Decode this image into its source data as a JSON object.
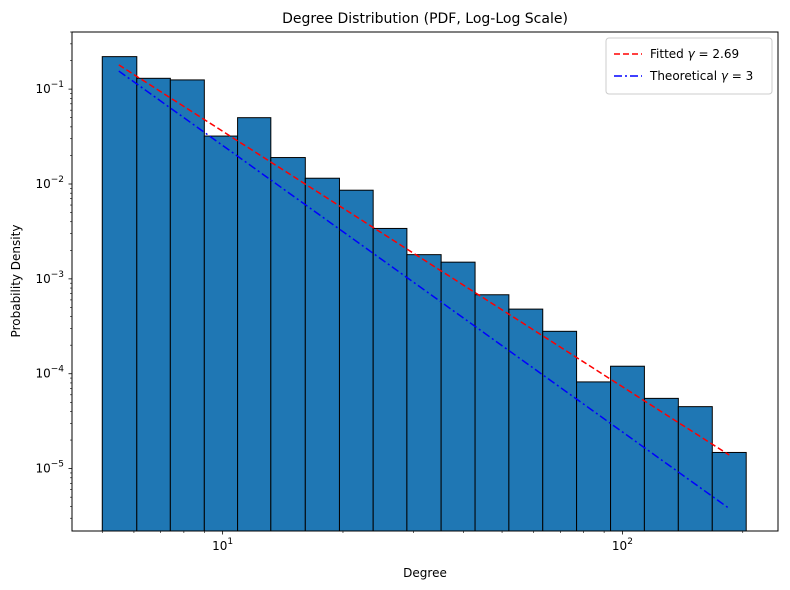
{
  "chart_data": {
    "type": "bar",
    "title": "Degree Distribution (PDF, Log-Log Scale)",
    "xlabel": "Degree",
    "ylabel": "Probability Density",
    "xscale": "log",
    "yscale": "log",
    "xlim": [
      4.2,
      245
    ],
    "ylim": [
      2.2e-06,
      0.4
    ],
    "grid": false,
    "legend_position": "top-right",
    "x_ticks": [
      {
        "value": 10,
        "base": "10",
        "exp": "1"
      },
      {
        "value": 100,
        "base": "10",
        "exp": "2"
      }
    ],
    "y_ticks": [
      {
        "value": 1e-05,
        "base": "10",
        "exp": "−5"
      },
      {
        "value": 0.0001,
        "base": "10",
        "exp": "−4"
      },
      {
        "value": 0.001,
        "base": "10",
        "exp": "−3"
      },
      {
        "value": 0.01,
        "base": "10",
        "exp": "−2"
      },
      {
        "value": 0.1,
        "base": "10",
        "exp": "−1"
      }
    ],
    "bin_edges": [
      5,
      6.1,
      7.4,
      9.0,
      10.9,
      13.2,
      16.1,
      19.6,
      23.8,
      28.9,
      35.2,
      42.8,
      52.0,
      63.2,
      76.8,
      93.4,
      113.5,
      138.0,
      167.8,
      204.0
    ],
    "values": [
      0.22,
      0.13,
      0.125,
      0.032,
      0.05,
      0.019,
      0.0115,
      0.0086,
      0.0034,
      0.0018,
      0.0015,
      0.00068,
      0.00048,
      0.00028,
      8.2e-05,
      0.00012,
      5.5e-05,
      4.5e-05,
      1.48e-05
    ],
    "bar_color": "#1f77b4",
    "bar_edge_color": "#000000",
    "series": [
      {
        "name_prefix": "Fitted ",
        "name_var": "γ",
        "name_suffix": " = 2.69",
        "color": "#ff0000",
        "dash": "6,3",
        "x": [
          5.5,
          185
        ],
        "y": [
          0.18,
          1.39e-05
        ]
      },
      {
        "name_prefix": "Theoretical ",
        "name_var": "γ",
        "name_suffix": " = 3",
        "color": "#0000ff",
        "dash": "8,3,2,3",
        "x": [
          5.5,
          185
        ],
        "y": [
          0.155,
          3.8e-06
        ]
      }
    ]
  }
}
